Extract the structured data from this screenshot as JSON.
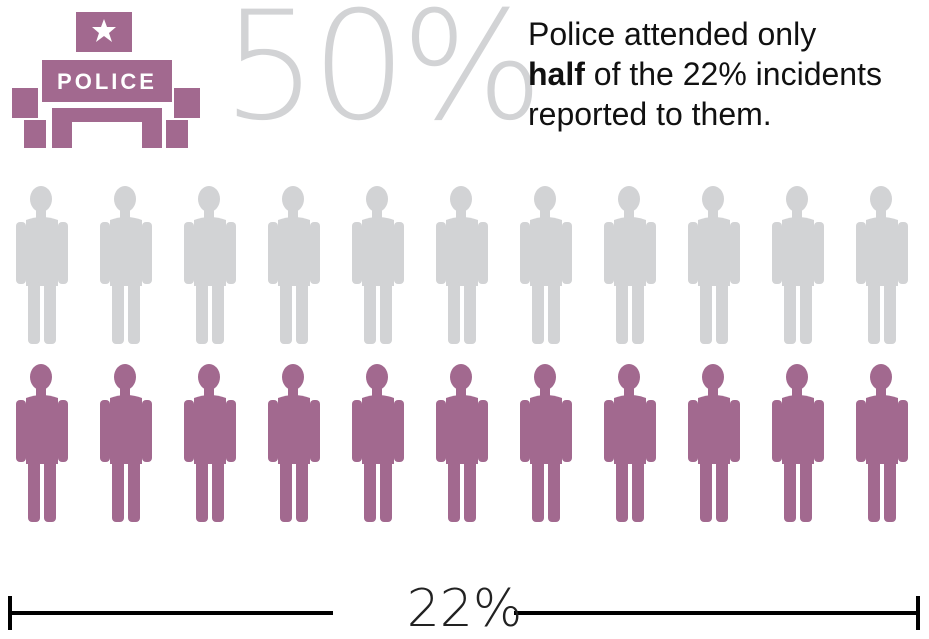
{
  "header": {
    "police_icon": "police-station-icon",
    "police_sign_text": "POLICE",
    "stat_value": "50%",
    "caption": {
      "line1": "Police attended only",
      "emphasis": "half",
      "line2_rest": " of the 22% incidents",
      "line3": "reported to them."
    }
  },
  "pictogram": {
    "icon": "person-icon",
    "people_per_row": 11,
    "rows": [
      {
        "name": "not-attended",
        "count": 11,
        "color": "#d2d3d5"
      },
      {
        "name": "attended",
        "count": 11,
        "color": "#a2698f"
      }
    ]
  },
  "footer": {
    "bracket_label": "22%"
  },
  "colors": {
    "accent_purple": "#a2698f",
    "muted_gray": "#d2d3d5",
    "text": "#111111"
  }
}
